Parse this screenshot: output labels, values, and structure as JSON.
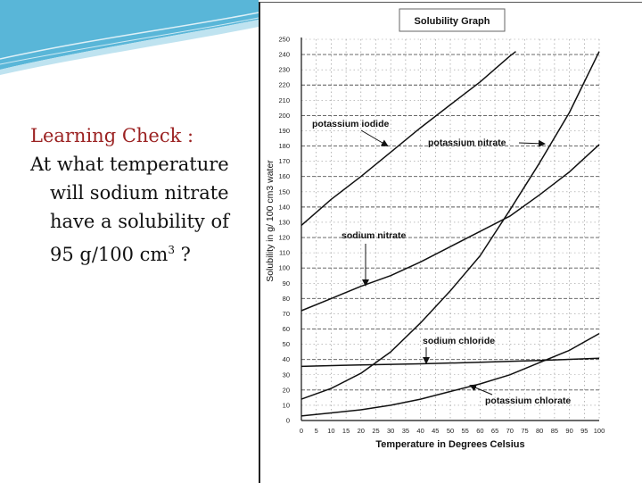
{
  "slide": {
    "title": "Learning Check :",
    "question_line1": "At what temperature",
    "question_line2": "will sodium nitrate",
    "question_line3": "have a solubility of",
    "question_line4_value": "95 g/100 cm",
    "question_line4_sup": "3",
    "question_line4_end": " ?"
  },
  "chart_data": {
    "type": "line",
    "title": "Solubility Graph",
    "xlabel": "Temperature in Degrees Celsius",
    "ylabel": "Solubility in g/ 100 cm3 water",
    "xlim": [
      0,
      100
    ],
    "ylim": [
      0,
      250
    ],
    "x_ticks": [
      0,
      5,
      10,
      15,
      20,
      25,
      30,
      35,
      40,
      45,
      50,
      55,
      60,
      65,
      70,
      75,
      80,
      85,
      90,
      95,
      100
    ],
    "y_ticks": [
      0,
      10,
      20,
      30,
      40,
      50,
      60,
      70,
      80,
      90,
      100,
      110,
      120,
      130,
      140,
      150,
      160,
      170,
      180,
      190,
      200,
      210,
      220,
      230,
      240,
      250
    ],
    "grid": true,
    "series": [
      {
        "name": "potassium iodide",
        "x": [
          0,
          10,
          20,
          30,
          40,
          50,
          60,
          70,
          72
        ],
        "y": [
          128,
          145,
          160,
          176,
          192,
          207,
          222,
          239,
          242
        ]
      },
      {
        "name": "potassium nitrate",
        "x": [
          0,
          10,
          20,
          30,
          40,
          50,
          60,
          70,
          80,
          90,
          100
        ],
        "y": [
          14,
          21,
          31,
          45,
          64,
          85,
          108,
          138,
          169,
          202,
          242
        ]
      },
      {
        "name": "sodium nitrate",
        "x": [
          0,
          10,
          20,
          30,
          40,
          50,
          60,
          70,
          80,
          90,
          100
        ],
        "y": [
          72,
          80,
          88,
          95,
          104,
          114,
          124,
          134,
          148,
          163,
          181
        ]
      },
      {
        "name": "sodium chloride",
        "x": [
          0,
          20,
          40,
          60,
          80,
          100
        ],
        "y": [
          35.5,
          36.5,
          37.2,
          38.2,
          39.4,
          40.8
        ]
      },
      {
        "name": "potassium chlorate",
        "x": [
          0,
          10,
          20,
          30,
          40,
          50,
          60,
          70,
          80,
          90,
          100
        ],
        "y": [
          3,
          5,
          7,
          10,
          14,
          19,
          24,
          30,
          38,
          46,
          57
        ]
      }
    ]
  }
}
